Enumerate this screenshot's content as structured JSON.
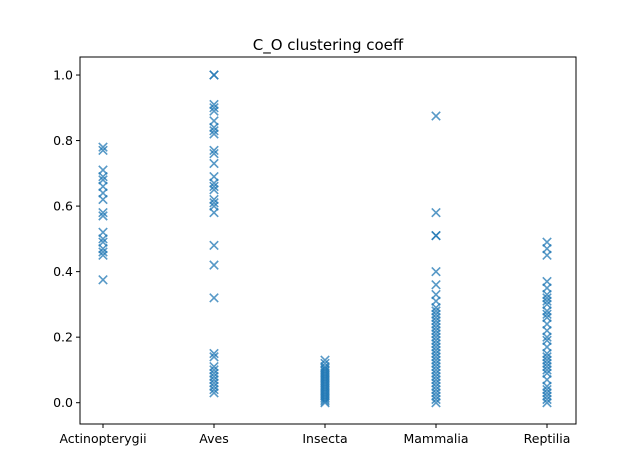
{
  "chart_data": {
    "type": "scatter",
    "title": "C_O clustering coeff",
    "xlabel": "",
    "ylabel": "",
    "ylim": [
      -0.065,
      1.055
    ],
    "grid": false,
    "marker": "x",
    "color": "#1f77b4",
    "categories": [
      "Actinopterygii",
      "Aves",
      "Insecta",
      "Mammalia",
      "Reptilia"
    ],
    "y_ticks": [
      0.0,
      0.2,
      0.4,
      0.6,
      0.8,
      1.0
    ],
    "y_tick_labels": [
      "0.0",
      "0.2",
      "0.4",
      "0.6",
      "0.8",
      "1.0"
    ],
    "points": {
      "Actinopterygii": [
        0.78,
        0.77,
        0.71,
        0.69,
        0.68,
        0.66,
        0.64,
        0.62,
        0.58,
        0.57,
        0.52,
        0.5,
        0.49,
        0.47,
        0.46,
        0.45,
        0.375
      ],
      "Aves": [
        1.0,
        1.0,
        0.91,
        0.9,
        0.89,
        0.86,
        0.84,
        0.83,
        0.82,
        0.77,
        0.76,
        0.73,
        0.69,
        0.67,
        0.66,
        0.65,
        0.62,
        0.61,
        0.6,
        0.58,
        0.48,
        0.42,
        0.32,
        0.15,
        0.14,
        0.11,
        0.1,
        0.09,
        0.08,
        0.07,
        0.06,
        0.05,
        0.04,
        0.03
      ],
      "Insecta": [
        0.13,
        0.12,
        0.11,
        0.105,
        0.1,
        0.095,
        0.09,
        0.085,
        0.08,
        0.075,
        0.07,
        0.065,
        0.06,
        0.055,
        0.05,
        0.045,
        0.04,
        0.035,
        0.03,
        0.025,
        0.02,
        0.015,
        0.01,
        0.005,
        0.0
      ],
      "Mammalia": [
        0.875,
        0.58,
        0.51,
        0.51,
        0.4,
        0.36,
        0.33,
        0.31,
        0.29,
        0.28,
        0.27,
        0.26,
        0.25,
        0.24,
        0.23,
        0.22,
        0.21,
        0.2,
        0.19,
        0.18,
        0.17,
        0.16,
        0.15,
        0.14,
        0.13,
        0.12,
        0.11,
        0.1,
        0.09,
        0.08,
        0.07,
        0.06,
        0.05,
        0.04,
        0.03,
        0.02,
        0.01,
        0.0
      ],
      "Reptilia": [
        0.49,
        0.47,
        0.45,
        0.37,
        0.35,
        0.33,
        0.32,
        0.31,
        0.3,
        0.28,
        0.27,
        0.26,
        0.24,
        0.22,
        0.2,
        0.19,
        0.17,
        0.15,
        0.14,
        0.13,
        0.12,
        0.11,
        0.1,
        0.09,
        0.07,
        0.05,
        0.04,
        0.03,
        0.02,
        0.01,
        0.0
      ]
    }
  }
}
